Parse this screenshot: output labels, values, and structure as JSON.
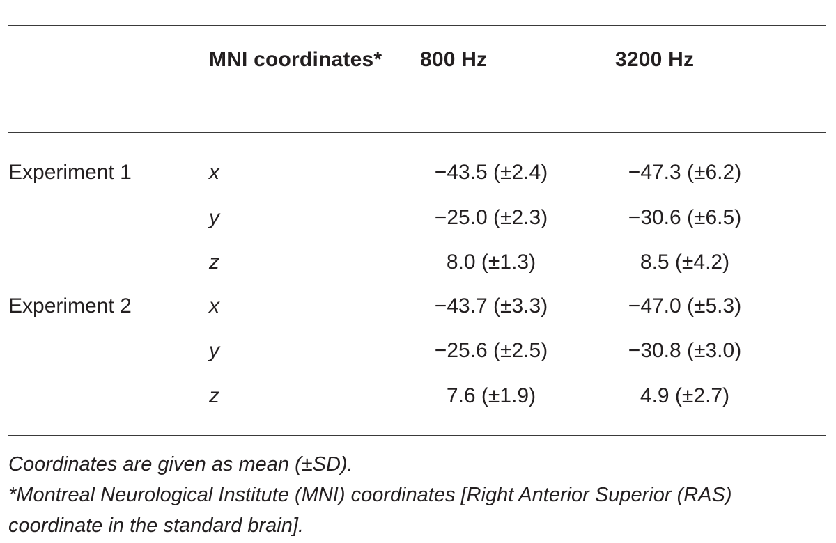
{
  "table": {
    "headers": [
      "",
      "MNI coordinates*",
      "800 Hz",
      "3200 Hz"
    ],
    "rows": [
      {
        "experiment": "Experiment 1",
        "axis": "x",
        "hz800": "−43.5 (±2.4)",
        "hz3200": "−47.3 (±6.2)"
      },
      {
        "experiment": "",
        "axis": "y",
        "hz800": "−25.0 (±2.3)",
        "hz3200": "−30.6 (±6.5)"
      },
      {
        "experiment": "",
        "axis": "z",
        "hz800": "8.0 (±1.3)",
        "hz3200": "8.5 (±4.2)"
      },
      {
        "experiment": "Experiment 2",
        "axis": "x",
        "hz800": "−43.7 (±3.3)",
        "hz3200": "−47.0 (±5.3)"
      },
      {
        "experiment": "",
        "axis": "y",
        "hz800": "−25.6 (±2.5)",
        "hz3200": "−30.8 (±3.0)"
      },
      {
        "experiment": "",
        "axis": "z",
        "hz800": "7.6 (±1.9)",
        "hz3200": "4.9 (±2.7)"
      }
    ]
  },
  "footnotes": [
    "Coordinates are given as mean (±SD).",
    "*Montreal Neurological Institute (MNI) coordinates [Right Anterior Superior (RAS)",
    "coordinate in the standard brain]."
  ]
}
